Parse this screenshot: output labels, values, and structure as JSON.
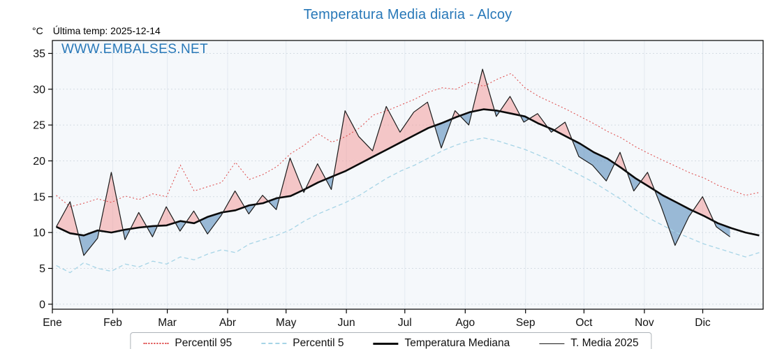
{
  "page": {
    "title": "Temperatura Media diaria - Alcoy",
    "units_label": "°C",
    "last_temp_label": "Última temp: 2025-12-14",
    "watermark": "WWW.EMBALSES.NET"
  },
  "colors": {
    "title": "#2878b8",
    "watermark": "#2878b8",
    "p95": "#dd4444",
    "p5": "#a6d4e6",
    "median": "#0a0a0a",
    "t2025": "#1a1a1a",
    "fill_above": "#f29d9d",
    "fill_below": "#5b8fbe",
    "plot_bg": "#f5f8fb",
    "grid_h": "#d4dce3",
    "grid_v": "#e2e9f0",
    "axis": "#000000"
  },
  "axes": {
    "y_ticks": [
      0,
      5,
      10,
      15,
      20,
      25,
      30,
      35
    ],
    "y_unit": "°C",
    "x_months": [
      "Ene",
      "Feb",
      "Mar",
      "Abr",
      "May",
      "Jun",
      "Jul",
      "Ago",
      "Sep",
      "Oct",
      "Nov",
      "Dic"
    ],
    "month_start_days": [
      0,
      31,
      59,
      90,
      120,
      151,
      181,
      212,
      243,
      273,
      304,
      334
    ],
    "days_in_year": 365
  },
  "legend": [
    {
      "label": "Percentil 95",
      "style": "dotted-red"
    },
    {
      "label": "Percentil 5",
      "style": "dashed-lightblue"
    },
    {
      "label": "Temperatura Mediana",
      "style": "thick-black"
    },
    {
      "label": "T. Media 2025",
      "style": "thin-black"
    }
  ],
  "chart_data": {
    "type": "line",
    "title": "Temperatura Media diaria - Alcoy",
    "xlabel": "",
    "ylabel": "°C",
    "ylim": [
      0,
      35
    ],
    "x_unit": "day_of_year",
    "grid": true,
    "legend_position": "bottom",
    "annotations": [
      "Última temp: 2025-12-14",
      "WWW.EMBALSES.NET"
    ],
    "fills": [
      {
        "name": "T. Media 2025 above Temperatura Mediana",
        "color_key": "fill_above"
      },
      {
        "name": "T. Media 2025 below Temperatura Mediana",
        "color_key": "fill_below"
      }
    ],
    "series": [
      {
        "name": "Percentil 95",
        "start_day": 2,
        "end_day": 363,
        "values": [
          15.2,
          13.6,
          14.1,
          14.7,
          14.2,
          15.1,
          14.6,
          15.4,
          15.0,
          19.4,
          15.8,
          16.4,
          17.0,
          19.8,
          17.4,
          18.1,
          19.2,
          21.0,
          22.2,
          23.8,
          22.6,
          23.4,
          24.6,
          26.4,
          27.0,
          27.8,
          28.6,
          29.6,
          30.2,
          30.0,
          31.0,
          30.4,
          31.4,
          32.2,
          30.2,
          29.0,
          28.1,
          27.2,
          26.2,
          25.2,
          24.1,
          23.2,
          22.0,
          21.0,
          20.1,
          19.2,
          18.3,
          17.6,
          16.6,
          15.9,
          15.2,
          15.6
        ]
      },
      {
        "name": "Percentil 5",
        "start_day": 2,
        "end_day": 363,
        "values": [
          5.4,
          4.4,
          5.8,
          5.0,
          4.6,
          5.6,
          5.2,
          6.0,
          5.6,
          6.6,
          6.2,
          7.0,
          7.6,
          7.2,
          8.4,
          9.0,
          9.6,
          10.4,
          11.6,
          12.6,
          13.4,
          14.2,
          15.2,
          16.4,
          17.6,
          18.6,
          19.4,
          20.4,
          21.4,
          22.2,
          22.8,
          23.2,
          22.8,
          22.2,
          21.6,
          20.8,
          20.0,
          19.0,
          18.0,
          17.0,
          15.8,
          14.6,
          13.2,
          12.0,
          11.0,
          10.0,
          9.2,
          8.4,
          7.8,
          7.2,
          6.6,
          7.2
        ]
      },
      {
        "name": "Temperatura Mediana",
        "start_day": 2,
        "end_day": 363,
        "values": [
          10.8,
          9.9,
          9.6,
          10.3,
          10.0,
          10.4,
          10.7,
          10.9,
          11.0,
          11.6,
          11.3,
          12.2,
          12.8,
          13.1,
          13.8,
          14.1,
          14.8,
          15.1,
          16.0,
          17.0,
          17.8,
          18.6,
          19.6,
          20.6,
          21.6,
          22.6,
          23.6,
          24.6,
          25.3,
          26.1,
          26.8,
          27.2,
          27.0,
          26.6,
          26.2,
          25.2,
          24.4,
          23.4,
          22.4,
          21.2,
          20.3,
          19.0,
          17.6,
          16.4,
          15.2,
          14.2,
          13.2,
          12.3,
          11.3,
          10.6,
          10.0,
          9.6
        ]
      },
      {
        "name": "T. Media 2025",
        "start_day": 2,
        "end_day": 348,
        "values": [
          10.8,
          14.3,
          6.8,
          9.2,
          18.4,
          9.0,
          12.8,
          9.4,
          13.6,
          10.2,
          13.0,
          9.8,
          12.4,
          15.8,
          12.6,
          15.2,
          13.2,
          20.4,
          15.6,
          19.6,
          16.0,
          27.0,
          23.4,
          21.4,
          27.6,
          24.0,
          26.8,
          28.2,
          21.8,
          27.0,
          25.0,
          32.8,
          26.2,
          29.0,
          25.4,
          26.6,
          24.0,
          25.4,
          20.6,
          19.4,
          17.2,
          21.2,
          15.8,
          18.4,
          13.6,
          8.2,
          12.2,
          15.0,
          10.8,
          9.4
        ]
      }
    ]
  }
}
